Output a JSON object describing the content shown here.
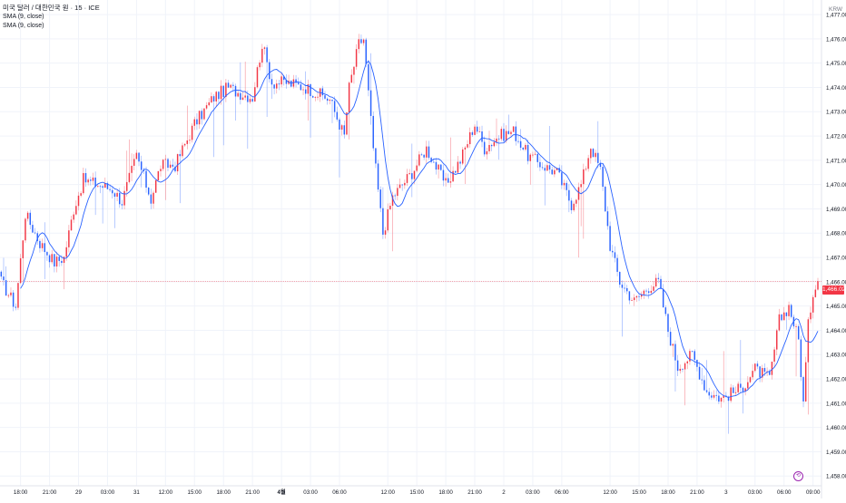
{
  "header": {
    "symbol_title": "미국 달러 / 대한민국 원 · 15 · ICE",
    "indicators": [
      "SMA (9, close)",
      "SMA (9, close)"
    ],
    "currency": "KRW"
  },
  "last_price_label": "1,466.02",
  "icons": {
    "replay": "replay-icon"
  },
  "colors": {
    "up": "#f23645",
    "down": "#2962ff",
    "sma": "#2962ff",
    "last_price_line": "#f23645",
    "grid": "#f0f3fa",
    "axis_text": "#131722"
  },
  "chart_data": {
    "type": "candlestick",
    "interval": "15m",
    "ylim": [
      1457.6,
      1477.6
    ],
    "price_labels": [
      "1,458.00",
      "1,459.00",
      "1,460.00",
      "1,461.00",
      "1,462.00",
      "1,463.00",
      "1,464.00",
      "1,465.00",
      "1,466.00",
      "1,467.00",
      "1,468.00",
      "1,469.00",
      "1,470.00",
      "1,471.00",
      "1,472.00",
      "1,473.00",
      "1,474.00",
      "1,475.00",
      "1,476.00",
      "1,477.00"
    ],
    "price_values": [
      1458,
      1459,
      1460,
      1461,
      1462,
      1463,
      1464,
      1465,
      1466,
      1467,
      1468,
      1469,
      1470,
      1471,
      1472,
      1473,
      1474,
      1475,
      1476,
      1477
    ],
    "time_labels": [
      "18:00",
      "21:00",
      "29",
      "03:00",
      "31",
      "12:00",
      "15:00",
      "18:00",
      "21:00",
      "4월",
      "03:00",
      "06:00",
      "12:00",
      "15:00",
      "18:00",
      "21:00",
      "2",
      "03:00",
      "06:00",
      "12:00",
      "15:00",
      "18:00",
      "21:00",
      "3",
      "03:00",
      "06:00",
      "09:00"
    ],
    "time_label_bold": [
      false,
      false,
      false,
      false,
      false,
      false,
      false,
      false,
      false,
      true,
      false,
      false,
      false,
      false,
      false,
      false,
      false,
      false,
      false,
      false,
      false,
      false,
      false,
      false,
      false,
      false,
      false
    ],
    "time_label_bar_index": [
      8,
      20,
      32,
      44,
      56,
      68,
      80,
      92,
      104,
      116,
      128,
      140,
      160,
      172,
      184,
      196,
      208,
      220,
      232,
      252,
      264,
      276,
      288,
      300,
      312,
      324,
      336
    ],
    "last_price": 1466.02,
    "waypoints": [
      [
        0,
        1466.0
      ],
      [
        6,
        1465.0
      ],
      [
        10,
        1468.8
      ],
      [
        16,
        1467.6
      ],
      [
        22,
        1466.8
      ],
      [
        26,
        1467.0
      ],
      [
        30,
        1469.0
      ],
      [
        34,
        1470.2
      ],
      [
        40,
        1470.0
      ],
      [
        46,
        1469.8
      ],
      [
        50,
        1469.3
      ],
      [
        56,
        1471.2
      ],
      [
        62,
        1469.4
      ],
      [
        66,
        1470.8
      ],
      [
        72,
        1470.8
      ],
      [
        80,
        1472.5
      ],
      [
        88,
        1473.6
      ],
      [
        94,
        1474.0
      ],
      [
        98,
        1473.8
      ],
      [
        104,
        1473.6
      ],
      [
        108,
        1475.8
      ],
      [
        112,
        1474.2
      ],
      [
        118,
        1474.2
      ],
      [
        126,
        1474.0
      ],
      [
        136,
        1473.5
      ],
      [
        142,
        1472.0
      ],
      [
        144,
        1474.0
      ],
      [
        148,
        1475.8
      ],
      [
        150,
        1476.0
      ],
      [
        154,
        1471.5
      ],
      [
        158,
        1468.0
      ],
      [
        162,
        1469.5
      ],
      [
        170,
        1470.5
      ],
      [
        176,
        1471.5
      ],
      [
        184,
        1470.0
      ],
      [
        190,
        1471.0
      ],
      [
        196,
        1472.5
      ],
      [
        200,
        1471.5
      ],
      [
        206,
        1472.0
      ],
      [
        212,
        1472.2
      ],
      [
        218,
        1471.2
      ],
      [
        224,
        1470.8
      ],
      [
        230,
        1470.5
      ],
      [
        236,
        1469.2
      ],
      [
        240,
        1470.0
      ],
      [
        244,
        1471.6
      ],
      [
        248,
        1470.6
      ],
      [
        252,
        1467.5
      ],
      [
        256,
        1466.0
      ],
      [
        262,
        1465.2
      ],
      [
        268,
        1465.8
      ],
      [
        272,
        1466.0
      ],
      [
        276,
        1464.0
      ],
      [
        280,
        1462.5
      ],
      [
        286,
        1463.0
      ],
      [
        292,
        1461.5
      ],
      [
        298,
        1461.2
      ],
      [
        306,
        1461.6
      ],
      [
        312,
        1462.4
      ],
      [
        318,
        1462.0
      ],
      [
        322,
        1464.4
      ],
      [
        326,
        1465.0
      ],
      [
        330,
        1463.6
      ],
      [
        332,
        1461.0
      ],
      [
        334,
        1464.2
      ],
      [
        336,
        1465.6
      ],
      [
        338,
        1466.0
      ]
    ],
    "series": [
      {
        "name": "SMA (9, close)",
        "type": "line",
        "period": 9
      }
    ]
  }
}
